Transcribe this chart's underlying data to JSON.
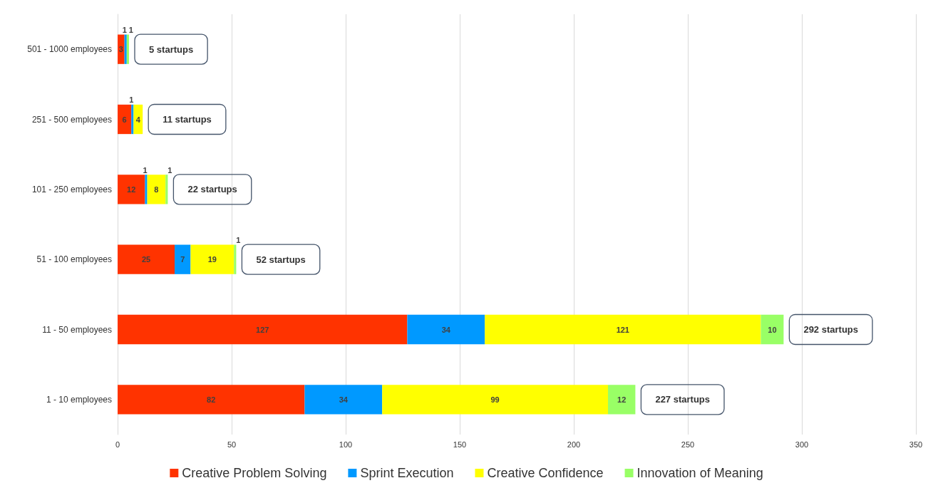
{
  "chart_data": {
    "type": "bar",
    "orientation": "horizontal",
    "stacked": true,
    "categories": [
      "501 - 1000 employees",
      "251 - 500 employees",
      "101 - 250 employees",
      "51 - 100 employees",
      "11 - 50 employees",
      "1 - 10 employees"
    ],
    "series": [
      {
        "name": "Creative Problem Solving",
        "color": "#ff3300",
        "values": [
          3,
          6,
          12,
          25,
          127,
          82
        ]
      },
      {
        "name": "Sprint Execution",
        "color": "#0099ff",
        "values": [
          1,
          1,
          1,
          7,
          34,
          34
        ]
      },
      {
        "name": "Creative Confidence",
        "color": "#ffff00",
        "values": [
          null,
          4,
          8,
          19,
          121,
          99
        ]
      },
      {
        "name": "Innovation of Meaning",
        "color": "#99ff66",
        "values": [
          1,
          null,
          1,
          1,
          10,
          12
        ]
      }
    ],
    "totals": [
      "5 startups",
      "11 startups",
      "22 startups",
      "52 startups",
      "292 startups",
      "227 startups"
    ],
    "xlim": [
      0,
      350
    ],
    "xticks": [
      0,
      50,
      100,
      150,
      200,
      250,
      300,
      350
    ],
    "grid": "x",
    "legend": "bottom",
    "data_labels": true
  }
}
